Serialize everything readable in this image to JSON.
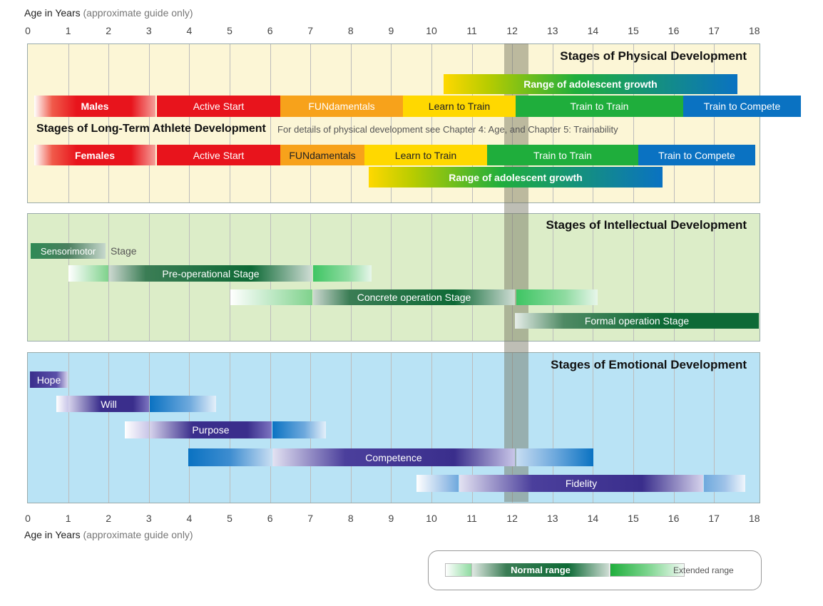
{
  "axis": {
    "title_main": "Age in Years",
    "title_note": "(approximate guide only)",
    "ticks": [
      "0",
      "1",
      "2",
      "3",
      "4",
      "5",
      "6",
      "7",
      "8",
      "9",
      "10",
      "11",
      "12",
      "13",
      "14",
      "15",
      "16",
      "17",
      "18"
    ]
  },
  "physical": {
    "title": "Stages of Physical Development",
    "growth_male": "Range of adolescent growth",
    "males_label": "Males",
    "males_stages": [
      "Active Start",
      "FUNdamentals",
      "Learn to Train",
      "Train to Train",
      "Train to Compete"
    ],
    "ltad_title": "Stages of Long-Term Athlete Development",
    "ltad_note": "For details of physical development see Chapter 4: Age, and Chapter 5: Trainability",
    "females_label": "Females",
    "females_stages": [
      "Active Start",
      "FUNdamentals",
      "Learn to Train",
      "Train to Train",
      "Train to Compete"
    ],
    "growth_female": "Range of adolescent growth"
  },
  "intellectual": {
    "title": "Stages of Intellectual Development",
    "sensorimotor": "Sensorimotor",
    "sensorimotor_suffix": "Stage",
    "preoperational": "Pre-operational Stage",
    "concrete": "Concrete operation Stage",
    "formal": "Formal operation Stage"
  },
  "emotional": {
    "title": "Stages of Emotional Development",
    "hope": "Hope",
    "will": "Will",
    "purpose": "Purpose",
    "competence": "Competence",
    "fidelity": "Fidelity"
  },
  "legend": {
    "normal": "Normal range",
    "extended": "Extended range"
  },
  "colors": {
    "physical_bg": "#fcf6d6",
    "intellectual_bg": "#dcedc8",
    "emotional_bg": "#b9e3f5",
    "red": "#e8141c",
    "orange": "#f7a21b",
    "yellow": "#ffd800",
    "green": "#1fae3c",
    "blue": "#0a72c2",
    "dark_green": "#0e6a36",
    "purple": "#3a2e8c"
  }
}
